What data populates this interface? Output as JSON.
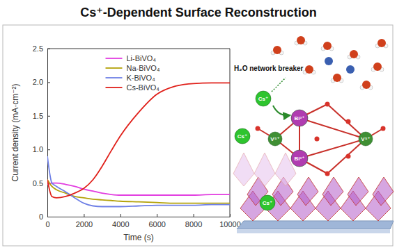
{
  "chart_data": {
    "type": "line",
    "title": "Cs⁺-Dependent Surface Reconstruction",
    "x_label": "Time (s)",
    "y_label": "Current density (mA·cm⁻²)",
    "x": [
      0,
      250,
      500,
      1000,
      1500,
      2000,
      2500,
      3000,
      3500,
      4000,
      5000,
      6000,
      7000,
      8000,
      9000,
      10000
    ],
    "series": [
      {
        "name": "Li-BiVO₄",
        "color": "#e23ee0",
        "values": [
          0.48,
          0.5,
          0.5,
          0.48,
          0.45,
          0.41,
          0.38,
          0.35,
          0.33,
          0.32,
          0.32,
          0.32,
          0.32,
          0.32,
          0.33,
          0.33
        ]
      },
      {
        "name": "Na-BiVO₄",
        "color": "#b4a20a",
        "values": [
          0.55,
          0.45,
          0.4,
          0.35,
          0.3,
          0.28,
          0.26,
          0.25,
          0.24,
          0.23,
          0.22,
          0.21,
          0.2,
          0.2,
          0.2,
          0.2
        ]
      },
      {
        "name": "K-BiVO₄",
        "color": "#6f80e6",
        "values": [
          0.9,
          0.5,
          0.45,
          0.37,
          0.28,
          0.2,
          0.16,
          0.15,
          0.15,
          0.15,
          0.16,
          0.17,
          0.17,
          0.17,
          0.18,
          0.18
        ]
      },
      {
        "name": "Cs-BiVO₄",
        "color": "#e0201a",
        "values": [
          0.55,
          0.3,
          0.28,
          0.3,
          0.35,
          0.42,
          0.55,
          0.75,
          0.98,
          1.2,
          1.55,
          1.82,
          1.94,
          1.98,
          1.99,
          1.99
        ]
      }
    ],
    "xlim": [
      0,
      10000
    ],
    "xticks": [
      0,
      2000,
      4000,
      6000,
      8000,
      10000
    ],
    "ylim": [
      0,
      2.5
    ],
    "yticks": [
      0,
      0.5,
      {
        "value": 1,
        "label": "1.0"
      },
      1.5,
      {
        "value": 2,
        "label": "2.0"
      },
      2.5
    ],
    "grid": false,
    "legend": "top",
    "annotations": [
      "H₂O network breaker",
      "Cs⁺",
      "Cs⁺",
      "Cs⁺",
      "Bi³⁺",
      "Bi³⁺",
      "V⁵⁺",
      "V⁵⁺"
    ]
  }
}
